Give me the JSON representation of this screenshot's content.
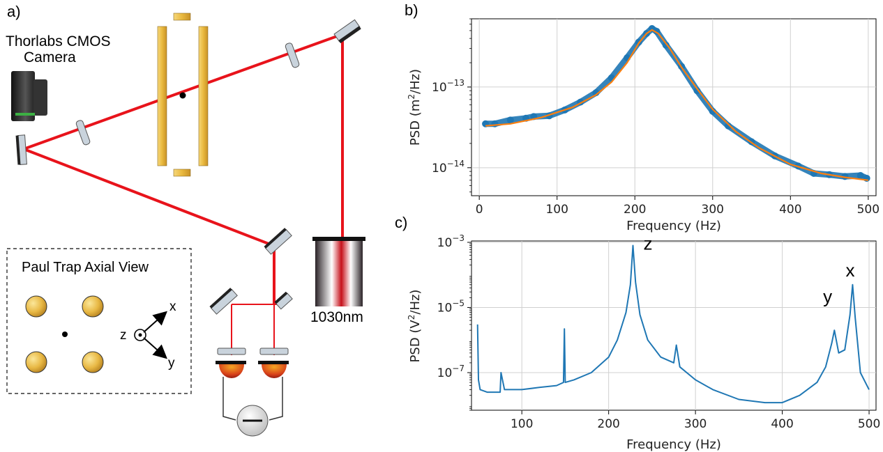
{
  "panel_labels": {
    "a": "a)",
    "b": "b)",
    "c": "c)"
  },
  "schematic": {
    "camera_label_1": "Thorlabs CMOS",
    "camera_label_2": "Camera",
    "laser_label": "1030nm",
    "inset_title": "Paul Trap Axial View",
    "axis_x": "x",
    "axis_y": "y",
    "axis_z": "z",
    "colors": {
      "beam": "#e8131b",
      "electrode": "#f0c44c",
      "electrode_dark": "#c9962a",
      "optic": "#c9d3dc",
      "mount": "#222222"
    },
    "icons": [
      "camera-icon",
      "mirror-icon",
      "lens-icon",
      "laser-icon",
      "photodiode-icon",
      "meter-icon"
    ]
  },
  "chart_data": [
    {
      "id": "b",
      "type": "scatter",
      "xlabel": "Frequency (Hz)",
      "ylabel_main": "PSD (m",
      "ylabel_sup": "2",
      "ylabel_tail": "/Hz)",
      "log_y": true,
      "xlim": [
        -10,
        510
      ],
      "ylim": [
        4.5e-15,
        7e-13
      ],
      "xticks": [
        0,
        100,
        200,
        300,
        400,
        500
      ],
      "yticks": [
        {
          "value": 1e-13,
          "base": "10",
          "exp": "−13"
        },
        {
          "value": 1e-14,
          "base": "10",
          "exp": "−14"
        }
      ],
      "grid": true,
      "series": [
        {
          "kind": "data",
          "color": "#1f77b4",
          "x": [
            8,
            20,
            40,
            60,
            70,
            90,
            110,
            130,
            150,
            170,
            190,
            205,
            215,
            222,
            228,
            240,
            260,
            280,
            300,
            320,
            350,
            380,
            410,
            430,
            450,
            470,
            490,
            498
          ],
          "y": [
            3.5e-14,
            3.5e-14,
            3.9e-14,
            4.1e-14,
            4.3e-14,
            4.4e-14,
            5.2e-14,
            6.5e-14,
            8.5e-14,
            1.3e-13,
            2.3e-13,
            3.6e-13,
            4.6e-13,
            5.3e-13,
            4.9e-13,
            3.3e-13,
            1.8e-13,
            9e-14,
            5e-14,
            3.3e-14,
            2.1e-14,
            1.4e-14,
            1.05e-14,
            8.5e-15,
            8.2e-15,
            7.8e-15,
            8e-15,
            7.4e-15
          ]
        },
        {
          "kind": "fit",
          "color": "#ff7f0e",
          "x": [
            8,
            40,
            80,
            120,
            150,
            170,
            190,
            205,
            215,
            222,
            230,
            245,
            260,
            280,
            300,
            330,
            360,
            400,
            440,
            470,
            500
          ],
          "y": [
            3.3e-14,
            3.5e-14,
            4.2e-14,
            5.6e-14,
            8e-14,
            1.15e-13,
            2e-13,
            3.5e-13,
            4.6e-13,
            5.1e-13,
            4.6e-13,
            3e-13,
            1.75e-13,
            9.5e-14,
            5.3e-14,
            2.8e-14,
            1.75e-14,
            1.1e-14,
            8.5e-15,
            7.6e-15,
            7e-15
          ]
        }
      ]
    },
    {
      "id": "c",
      "type": "line",
      "xlabel": "Frequency (Hz)",
      "ylabel_main": "PSD (V",
      "ylabel_sup": "2",
      "ylabel_tail": "/Hz)",
      "log_y": true,
      "xlim": [
        42,
        508
      ],
      "ylim": [
        7e-09,
        0.0011
      ],
      "xticks": [
        100,
        200,
        300,
        400,
        500
      ],
      "yticks": [
        {
          "value": 0.001,
          "base": "10",
          "exp": "−3"
        },
        {
          "value": 1e-05,
          "base": "10",
          "exp": "−5"
        },
        {
          "value": 1e-07,
          "base": "10",
          "exp": "−7"
        }
      ],
      "grid": true,
      "annotations": [
        {
          "text": "z",
          "x": 240,
          "y": 0.0006
        },
        {
          "text": "y",
          "x": 447,
          "y": 1.4e-05
        },
        {
          "text": "x",
          "x": 473,
          "y": 9e-05
        }
      ],
      "series": [
        {
          "kind": "data",
          "color": "#1f77b4",
          "x": [
            49,
            50,
            52,
            60,
            75,
            76,
            80,
            100,
            120,
            140,
            148,
            149,
            150,
            160,
            180,
            200,
            210,
            220,
            225,
            228,
            231,
            236,
            245,
            260,
            275,
            278,
            282,
            300,
            320,
            350,
            380,
            400,
            420,
            440,
            450,
            457,
            460,
            465,
            472,
            478,
            481,
            484,
            490,
            500
          ],
          "y": [
            3e-06,
            6e-08,
            3e-08,
            2.5e-08,
            2.5e-08,
            1e-07,
            3e-08,
            3e-08,
            3.5e-08,
            4e-08,
            5e-08,
            2.2e-06,
            5e-08,
            6e-08,
            1e-07,
            3e-07,
            1e-06,
            7e-06,
            5e-05,
            0.0008,
            6e-05,
            6e-06,
            1e-06,
            3e-07,
            2e-07,
            7e-07,
            1.5e-07,
            6e-08,
            3e-08,
            1.5e-08,
            1.2e-08,
            1.2e-08,
            2e-08,
            5e-08,
            1.5e-07,
            8e-07,
            2e-06,
            4e-07,
            5e-07,
            6e-06,
            5e-05,
            5e-06,
            1e-07,
            3e-08
          ]
        }
      ]
    }
  ]
}
